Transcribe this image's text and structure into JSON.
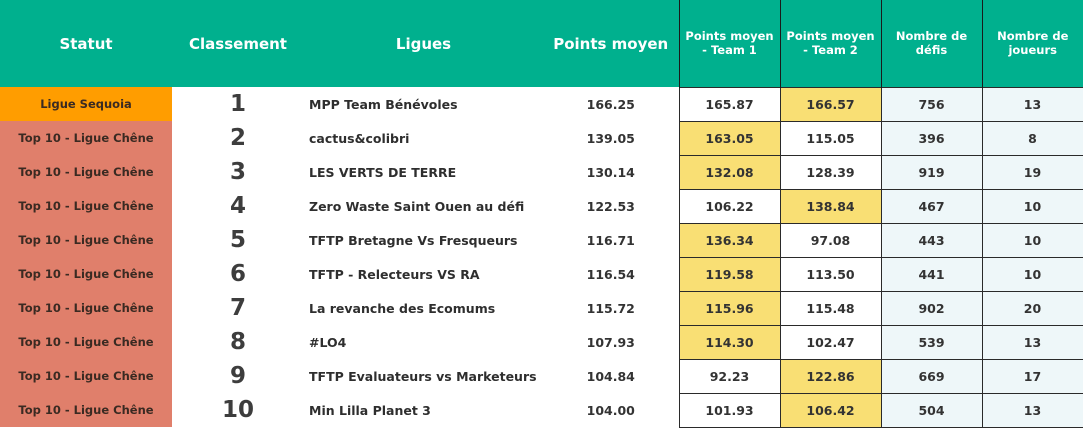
{
  "headers": {
    "statut": "Statut",
    "classement": "Classement",
    "ligues": "Ligues",
    "points_moyen": "Points moyen",
    "team1": "Points moyen - Team 1",
    "team2": "Points moyen - Team 2",
    "defis": "Nombre de défis",
    "joueurs": "Nombre de joueurs"
  },
  "colors": {
    "header_bg": "#00b08e",
    "sequoia": "#ff9d00",
    "chene": "#e07f6b",
    "highlight": "#f9df74",
    "light_cell": "#eef7f9"
  },
  "rows": [
    {
      "statut": "Ligue Sequoia",
      "rank": "1",
      "ligue": "MPP Team Bénévoles",
      "points": "166.25",
      "team1": "165.87",
      "team2": "166.57",
      "defis": "756",
      "joueurs": "13",
      "hl": "team2"
    },
    {
      "statut": "Top 10 - Ligue Chêne",
      "rank": "2",
      "ligue": "cactus&colibri",
      "points": "139.05",
      "team1": "163.05",
      "team2": "115.05",
      "defis": "396",
      "joueurs": "8",
      "hl": "team1"
    },
    {
      "statut": "Top 10 - Ligue Chêne",
      "rank": "3",
      "ligue": "LES VERTS DE TERRE",
      "points": "130.14",
      "team1": "132.08",
      "team2": "128.39",
      "defis": "919",
      "joueurs": "19",
      "hl": "team1"
    },
    {
      "statut": "Top 10 - Ligue Chêne",
      "rank": "4",
      "ligue": "Zero Waste Saint Ouen au défi",
      "points": "122.53",
      "team1": "106.22",
      "team2": "138.84",
      "defis": "467",
      "joueurs": "10",
      "hl": "team2"
    },
    {
      "statut": "Top 10 - Ligue Chêne",
      "rank": "5",
      "ligue": "TFTP Bretagne Vs Fresqueurs",
      "points": "116.71",
      "team1": "136.34",
      "team2": "97.08",
      "defis": "443",
      "joueurs": "10",
      "hl": "team1"
    },
    {
      "statut": "Top 10 - Ligue Chêne",
      "rank": "6",
      "ligue": "TFTP - Relecteurs VS RA",
      "points": "116.54",
      "team1": "119.58",
      "team2": "113.50",
      "defis": "441",
      "joueurs": "10",
      "hl": "team1"
    },
    {
      "statut": "Top 10 - Ligue Chêne",
      "rank": "7",
      "ligue": "La revanche des Ecomums",
      "points": "115.72",
      "team1": "115.96",
      "team2": "115.48",
      "defis": "902",
      "joueurs": "20",
      "hl": "team1"
    },
    {
      "statut": "Top 10 - Ligue Chêne",
      "rank": "8",
      "ligue": "#LO4",
      "points": "107.93",
      "team1": "114.30",
      "team2": "102.47",
      "defis": "539",
      "joueurs": "13",
      "hl": "team1"
    },
    {
      "statut": "Top 10 - Ligue Chêne",
      "rank": "9",
      "ligue": "TFTP Evaluateurs vs Marketeurs",
      "points": "104.84",
      "team1": "92.23",
      "team2": "122.86",
      "defis": "669",
      "joueurs": "17",
      "hl": "team2"
    },
    {
      "statut": "Top 10 - Ligue Chêne",
      "rank": "10",
      "ligue": "Min Lilla Planet 3",
      "points": "104.00",
      "team1": "101.93",
      "team2": "106.42",
      "defis": "504",
      "joueurs": "13",
      "hl": "team2"
    }
  ]
}
